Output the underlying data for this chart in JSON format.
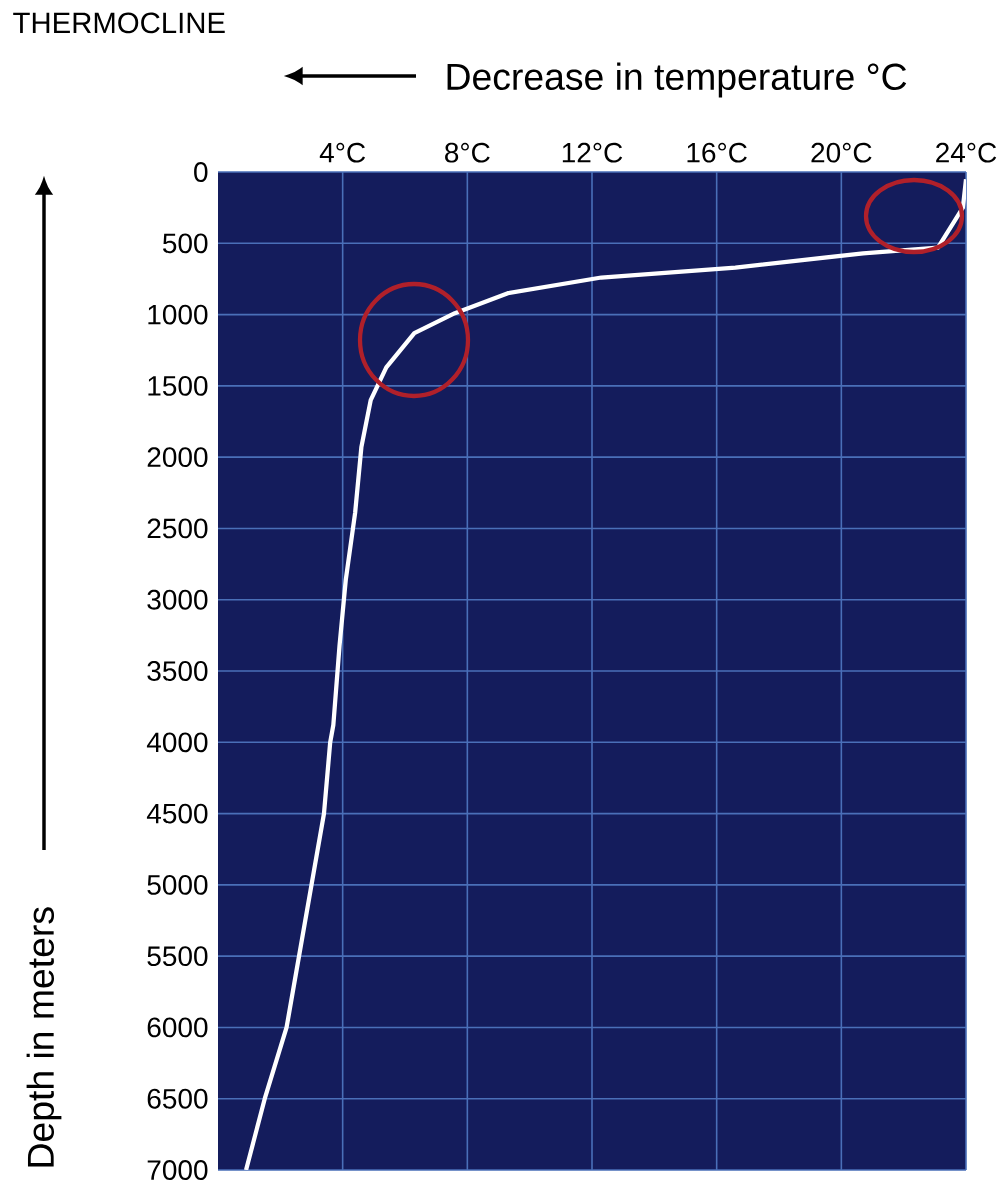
{
  "chart_data": {
    "type": "line",
    "title": "THERMOCLINE",
    "xlabel": "Decrease in temperature °C",
    "ylabel": "Depth in meters",
    "xlim": [
      0,
      24
    ],
    "xticks": [
      {
        "value": 4,
        "label": "4°C"
      },
      {
        "value": 8,
        "label": "8°C"
      },
      {
        "value": 12,
        "label": "12°C"
      },
      {
        "value": 16,
        "label": "16°C"
      },
      {
        "value": 20,
        "label": "20°C"
      },
      {
        "value": 24,
        "label": "24°C"
      }
    ],
    "ylim": [
      7000,
      0
    ],
    "yticks": [
      0,
      500,
      1000,
      1500,
      2000,
      2500,
      3000,
      3500,
      4000,
      4500,
      5000,
      5500,
      6000,
      6500,
      7000
    ],
    "grid": true,
    "series": [
      {
        "color": "#ffffff",
        "x": [
          24,
          23.9,
          23.1,
          20.7,
          16.6,
          12.3,
          9.3,
          7.6,
          6.3,
          5.4,
          4.9,
          4.6,
          4.4,
          4.1,
          3.9,
          3.7,
          3.6,
          3.4,
          3.0,
          2.6,
          2.2,
          1.5,
          0.9
        ],
        "values": [
          50,
          250,
          530,
          570,
          670,
          740,
          850,
          990,
          1130,
          1370,
          1600,
          1930,
          2390,
          2860,
          3320,
          3880,
          4000,
          4500,
          5000,
          5500,
          6000,
          6500,
          7000
        ]
      }
    ]
  }
}
